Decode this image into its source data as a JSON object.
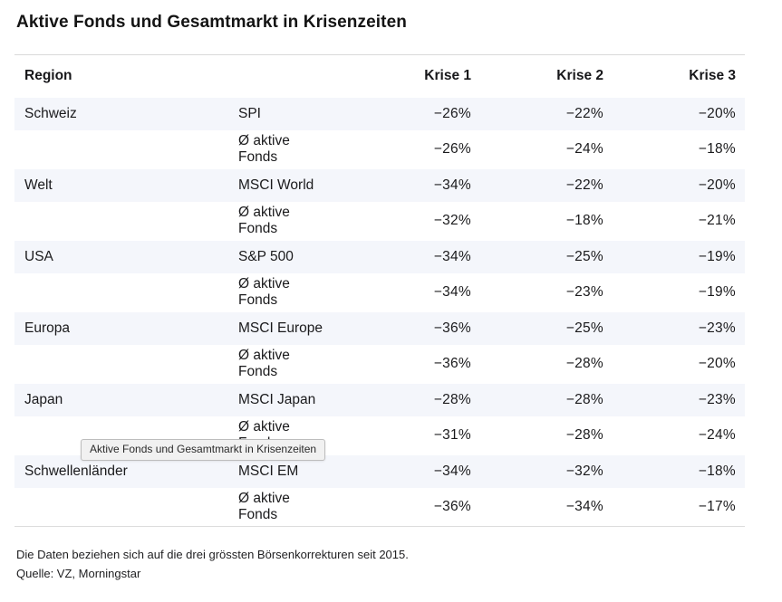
{
  "title": "Aktive Fonds und Gesamtmarkt in Krisenzeiten",
  "table": {
    "columns": [
      "Region",
      "",
      "Krise 1",
      "Krise 2",
      "Krise 3"
    ],
    "rows": [
      {
        "region": "Schweiz",
        "label": "SPI",
        "values": [
          "−26%",
          "−22%",
          "−20%"
        ],
        "highlight": true
      },
      {
        "region": "",
        "label": "Ø aktive\nFonds",
        "values": [
          "−26%",
          "−24%",
          "−18%"
        ],
        "highlight": false
      },
      {
        "region": "Welt",
        "label": "MSCI World",
        "values": [
          "−34%",
          "−22%",
          "−20%"
        ],
        "highlight": true
      },
      {
        "region": "",
        "label": "Ø aktive\nFonds",
        "values": [
          "−32%",
          "−18%",
          "−21%"
        ],
        "highlight": false
      },
      {
        "region": "USA",
        "label": "S&P 500",
        "values": [
          "−34%",
          "−25%",
          "−19%"
        ],
        "highlight": true
      },
      {
        "region": "",
        "label": "Ø aktive\nFonds",
        "values": [
          "−34%",
          "−23%",
          "−19%"
        ],
        "highlight": false
      },
      {
        "region": "Europa",
        "label": "MSCI Europe",
        "values": [
          "−36%",
          "−25%",
          "−23%"
        ],
        "highlight": true
      },
      {
        "region": "",
        "label": "Ø aktive\nFonds",
        "values": [
          "−36%",
          "−28%",
          "−20%"
        ],
        "highlight": false
      },
      {
        "region": "Japan",
        "label": "MSCI Japan",
        "values": [
          "−28%",
          "−28%",
          "−23%"
        ],
        "highlight": true
      },
      {
        "region": "",
        "label": "Ø aktive\nFonds",
        "values": [
          "−31%",
          "−28%",
          "−24%"
        ],
        "highlight": false
      },
      {
        "region": "Schwellenländer",
        "label": "MSCI EM",
        "values": [
          "−34%",
          "−32%",
          "−18%"
        ],
        "highlight": true
      },
      {
        "region": "",
        "label": "Ø aktive\nFonds",
        "values": [
          "−36%",
          "−34%",
          "−17%"
        ],
        "highlight": false
      }
    ]
  },
  "tooltip": {
    "text": "Aktive Fonds und Gesamtmarkt in Krisenzeiten"
  },
  "footnote": "Die Daten beziehen sich auf die drei grössten Börsenkorrekturen seit 2015.",
  "source": "Quelle: VZ, Morningstar",
  "colors": {
    "row_highlight": "#f4f6fb",
    "rule": "#d9d9d9",
    "text": "#1a1a1c",
    "tooltip_bg": "#f1f1f1",
    "tooltip_border": "#bdbdbd"
  },
  "chart_data": {
    "type": "table",
    "title": "Aktive Fonds und Gesamtmarkt in Krisenzeiten",
    "columns": [
      "Region",
      "",
      "Krise 1",
      "Krise 2",
      "Krise 3"
    ],
    "unit": "%",
    "rows": [
      [
        "Schweiz",
        "SPI",
        -26,
        -22,
        -20
      ],
      [
        "Schweiz",
        "Ø aktive Fonds",
        -26,
        -24,
        -18
      ],
      [
        "Welt",
        "MSCI World",
        -34,
        -22,
        -20
      ],
      [
        "Welt",
        "Ø aktive Fonds",
        -32,
        -18,
        -21
      ],
      [
        "USA",
        "S&P 500",
        -34,
        -25,
        -19
      ],
      [
        "USA",
        "Ø aktive Fonds",
        -34,
        -23,
        -19
      ],
      [
        "Europa",
        "MSCI Europe",
        -36,
        -25,
        -23
      ],
      [
        "Europa",
        "Ø aktive Fonds",
        -36,
        -28,
        -20
      ],
      [
        "Japan",
        "MSCI Japan",
        -28,
        -28,
        -23
      ],
      [
        "Japan",
        "Ø aktive Fonds",
        -31,
        -28,
        -24
      ],
      [
        "Schwellenländer",
        "MSCI EM",
        -34,
        -32,
        -18
      ],
      [
        "Schwellenländer",
        "Ø aktive Fonds",
        -36,
        -34,
        -17
      ]
    ],
    "footnote": "Die Daten beziehen sich auf die drei grössten Börsenkorrekturen seit 2015.",
    "source": "Quelle: VZ, Morningstar"
  }
}
